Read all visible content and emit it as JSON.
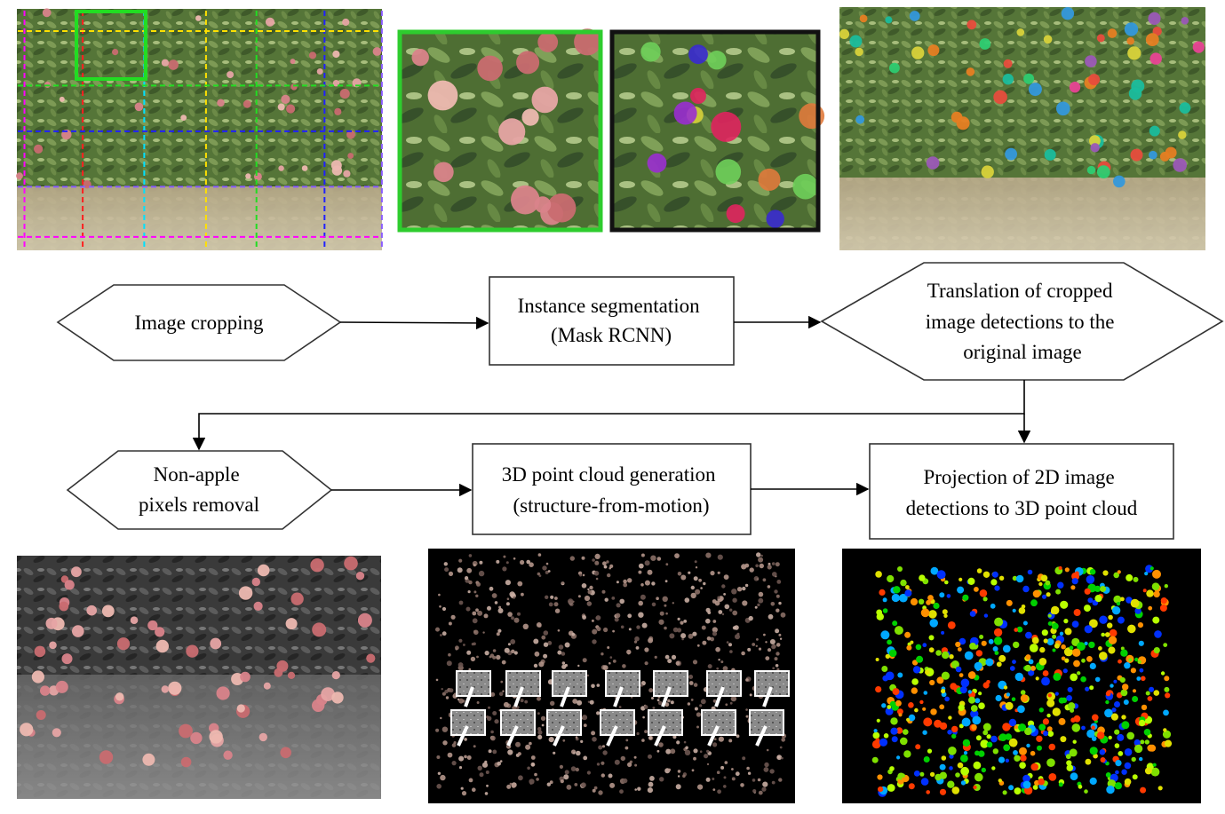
{
  "nodes": {
    "crop": {
      "lines": [
        "Image cropping"
      ]
    },
    "seg": {
      "lines": [
        "Instance segmentation",
        "(Mask RCNN)"
      ]
    },
    "trans": {
      "lines": [
        "Translation of cropped",
        "image detections to the",
        "original image"
      ]
    },
    "nonapple": {
      "lines": [
        "Non-apple",
        "pixels removal"
      ]
    },
    "cloud": {
      "lines": [
        "3D point cloud generation",
        "(structure-from-motion)"
      ]
    },
    "proj": {
      "lines": [
        "Projection of 2D image",
        "detections to 3D point cloud"
      ]
    }
  },
  "photos": {
    "grid": {
      "icon": "orchard-grid-crop-image"
    },
    "crop_raw": {
      "icon": "cropped-apple-tile-image",
      "frame_color": "#2ecc2e"
    },
    "crop_seg": {
      "icon": "segmented-apple-tile-image",
      "frame_color": "#111111"
    },
    "full_seg": {
      "icon": "orchard-segmented-image"
    },
    "gray": {
      "icon": "nonapple-removed-image"
    },
    "cloud": {
      "icon": "point-cloud-camera-image"
    },
    "proj": {
      "icon": "projected-point-cloud-image"
    }
  },
  "colors": {
    "foliage": "#5b7a3c",
    "ground": "#c9b79a",
    "apple": "#d9838a",
    "grid_green": "#22dd22"
  }
}
